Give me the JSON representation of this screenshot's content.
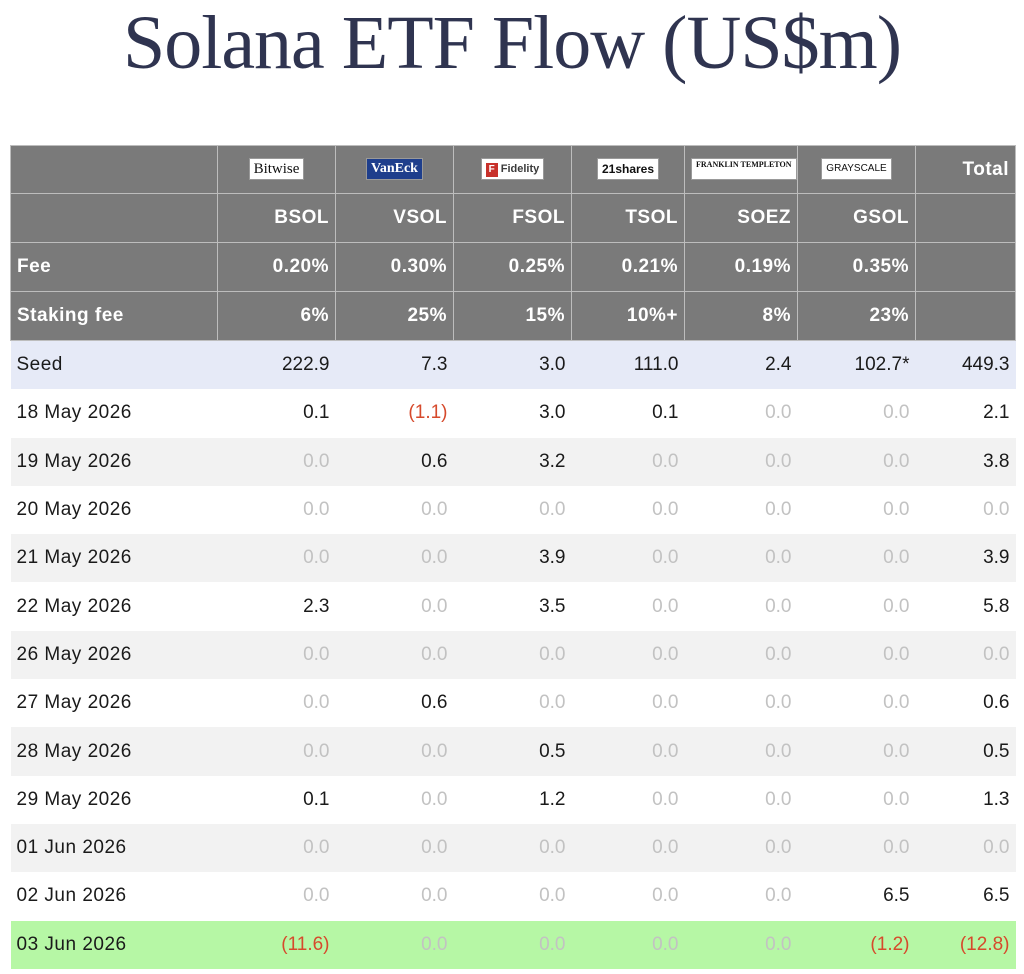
{
  "page": {
    "title": "Solana ETF Flow (US$m)"
  },
  "logos": [
    "Bitwise",
    "VanEck",
    "Fidelity",
    "21shares",
    "FRANKLIN TEMPLETON",
    "GRAYSCALE"
  ],
  "header": {
    "total_label": "Total",
    "tickers": [
      "BSOL",
      "VSOL",
      "FSOL",
      "TSOL",
      "SOEZ",
      "GSOL"
    ],
    "fee_label": "Fee",
    "fees": [
      "0.20%",
      "0.30%",
      "0.25%",
      "0.21%",
      "0.19%",
      "0.35%"
    ],
    "staking_label": "Staking fee",
    "staking_fees": [
      "6%",
      "25%",
      "15%",
      "10%+",
      "8%",
      "23%"
    ]
  },
  "rows": [
    {
      "date": "Seed",
      "values": [
        "222.9",
        "7.3",
        "3.0",
        "111.0",
        "2.4",
        "102.7*"
      ],
      "total": "449.3",
      "style": "seed"
    },
    {
      "date": "18 May 2026",
      "values": [
        "0.1",
        "(1.1)",
        "3.0",
        "0.1",
        "0.0",
        "0.0"
      ],
      "total": "2.1",
      "style": ""
    },
    {
      "date": "19 May 2026",
      "values": [
        "0.0",
        "0.6",
        "3.2",
        "0.0",
        "0.0",
        "0.0"
      ],
      "total": "3.8",
      "style": "alt"
    },
    {
      "date": "20 May 2026",
      "values": [
        "0.0",
        "0.0",
        "0.0",
        "0.0",
        "0.0",
        "0.0"
      ],
      "total": "0.0",
      "style": ""
    },
    {
      "date": "21 May 2026",
      "values": [
        "0.0",
        "0.0",
        "3.9",
        "0.0",
        "0.0",
        "0.0"
      ],
      "total": "3.9",
      "style": "alt"
    },
    {
      "date": "22 May 2026",
      "values": [
        "2.3",
        "0.0",
        "3.5",
        "0.0",
        "0.0",
        "0.0"
      ],
      "total": "5.8",
      "style": ""
    },
    {
      "date": "26 May 2026",
      "values": [
        "0.0",
        "0.0",
        "0.0",
        "0.0",
        "0.0",
        "0.0"
      ],
      "total": "0.0",
      "style": "alt"
    },
    {
      "date": "27 May 2026",
      "values": [
        "0.0",
        "0.6",
        "0.0",
        "0.0",
        "0.0",
        "0.0"
      ],
      "total": "0.6",
      "style": ""
    },
    {
      "date": "28 May 2026",
      "values": [
        "0.0",
        "0.0",
        "0.5",
        "0.0",
        "0.0",
        "0.0"
      ],
      "total": "0.5",
      "style": "alt"
    },
    {
      "date": "29 May 2026",
      "values": [
        "0.1",
        "0.0",
        "1.2",
        "0.0",
        "0.0",
        "0.0"
      ],
      "total": "1.3",
      "style": ""
    },
    {
      "date": "01 Jun 2026",
      "values": [
        "0.0",
        "0.0",
        "0.0",
        "0.0",
        "0.0",
        "0.0"
      ],
      "total": "0.0",
      "style": "alt"
    },
    {
      "date": "02 Jun 2026",
      "values": [
        "0.0",
        "0.0",
        "0.0",
        "0.0",
        "0.0",
        "6.5"
      ],
      "total": "6.5",
      "style": ""
    },
    {
      "date": "03 Jun 2026",
      "values": [
        "(11.6)",
        "0.0",
        "0.0",
        "0.0",
        "0.0",
        "(1.2)"
      ],
      "total": "(12.8)",
      "style": "today"
    }
  ],
  "colors": {
    "header_bg": "#7a7a7a",
    "seed_bg": "#e6eaf7",
    "alt_bg": "#f2f2f2",
    "today_bg": "#b6f7a5",
    "negative": "#d64a2c",
    "zero": "#c2c2c2",
    "title": "#2f3450"
  }
}
